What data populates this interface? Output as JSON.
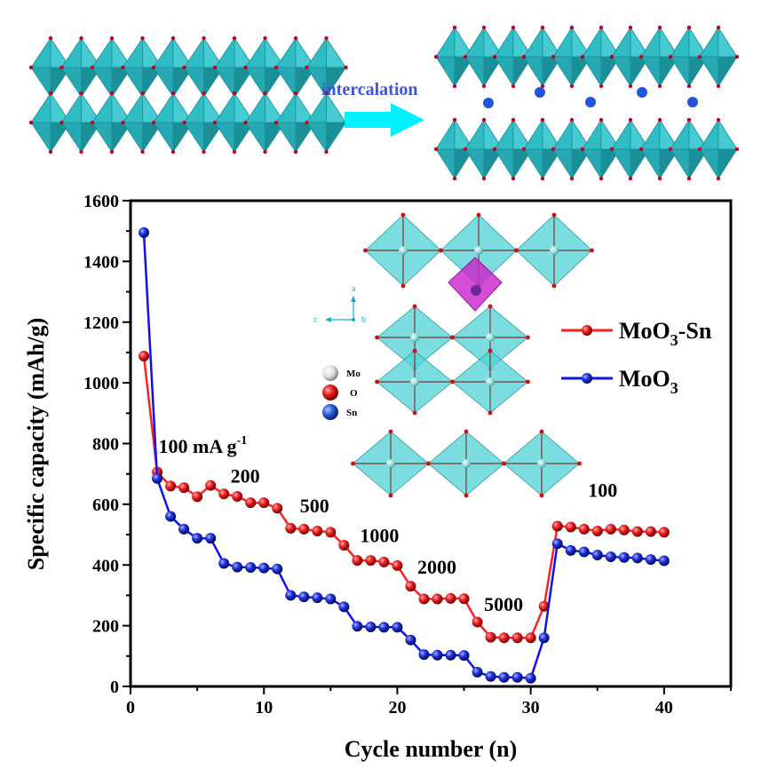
{
  "schematic": {
    "arrow_label": "intercalation",
    "colors": {
      "octahedron": "#2fbcc4",
      "octahedron_dark": "#1b8f98",
      "oxygen": "#c2001f",
      "ion": "#2255dd",
      "arrow": "#00f0ff"
    }
  },
  "inset": {
    "legend": [
      {
        "label": "Mo",
        "color": "#e8e8e8"
      },
      {
        "label": "O",
        "color": "#e01010"
      },
      {
        "label": "Sn",
        "color": "#2a5fd8"
      }
    ],
    "axes": {
      "a": "a",
      "b": "b",
      "c": "c"
    },
    "colors": {
      "octahedron": "#4fd1d6",
      "sn_polyhedron": "#cc22cc"
    }
  },
  "chart_data": {
    "type": "line",
    "xlabel": "Cycle number (n)",
    "ylabel": "Specific capacity (mAh/g)",
    "xlim": [
      0,
      45
    ],
    "ylim": [
      0,
      1600
    ],
    "xticks": [
      0,
      10,
      20,
      30,
      40
    ],
    "yticks": [
      0,
      200,
      400,
      600,
      800,
      1000,
      1200,
      1400,
      1600
    ],
    "grid": false,
    "legend_position": "right",
    "x": [
      1,
      2,
      3,
      4,
      5,
      6,
      7,
      8,
      9,
      10,
      11,
      12,
      13,
      14,
      15,
      16,
      17,
      18,
      19,
      20,
      21,
      22,
      23,
      24,
      25,
      26,
      27,
      28,
      29,
      30,
      31,
      32,
      33,
      34,
      35,
      36,
      37,
      38,
      39,
      40
    ],
    "series": [
      {
        "name": "MoO3-Sn",
        "name_main": "MoO",
        "name_sub": "3",
        "name_suffix": "-Sn",
        "color": "#e8141b",
        "line_color": "#ff2020",
        "values": [
          1088,
          706,
          660,
          655,
          625,
          662,
          634,
          626,
          605,
          605,
          587,
          521,
          518,
          512,
          508,
          465,
          415,
          415,
          410,
          398,
          330,
          288,
          288,
          290,
          289,
          212,
          162,
          160,
          160,
          160,
          264,
          528,
          525,
          518,
          512,
          518,
          515,
          510,
          510,
          508
        ]
      },
      {
        "name": "MoO3",
        "name_main": "MoO",
        "name_sub": "3",
        "name_suffix": "",
        "color": "#1a22d0",
        "line_color": "#1010ee",
        "values": [
          1495,
          685,
          560,
          518,
          488,
          488,
          405,
          393,
          392,
          390,
          387,
          300,
          295,
          292,
          288,
          262,
          198,
          196,
          195,
          195,
          153,
          105,
          103,
          103,
          102,
          47,
          33,
          30,
          30,
          27,
          160,
          470,
          448,
          443,
          433,
          427,
          425,
          423,
          418,
          414
        ]
      }
    ],
    "annotations": [
      {
        "x": 2.1,
        "y": 770,
        "text": "100 mA g",
        "sup": "-1"
      },
      {
        "x": 7.5,
        "y": 672,
        "text": "200"
      },
      {
        "x": 12.7,
        "y": 574,
        "text": "500"
      },
      {
        "x": 17.2,
        "y": 475,
        "text": "1000"
      },
      {
        "x": 21.5,
        "y": 372,
        "text": "2000"
      },
      {
        "x": 26.5,
        "y": 248,
        "text": "5000"
      },
      {
        "x": 34.3,
        "y": 625,
        "text": "100"
      }
    ]
  }
}
